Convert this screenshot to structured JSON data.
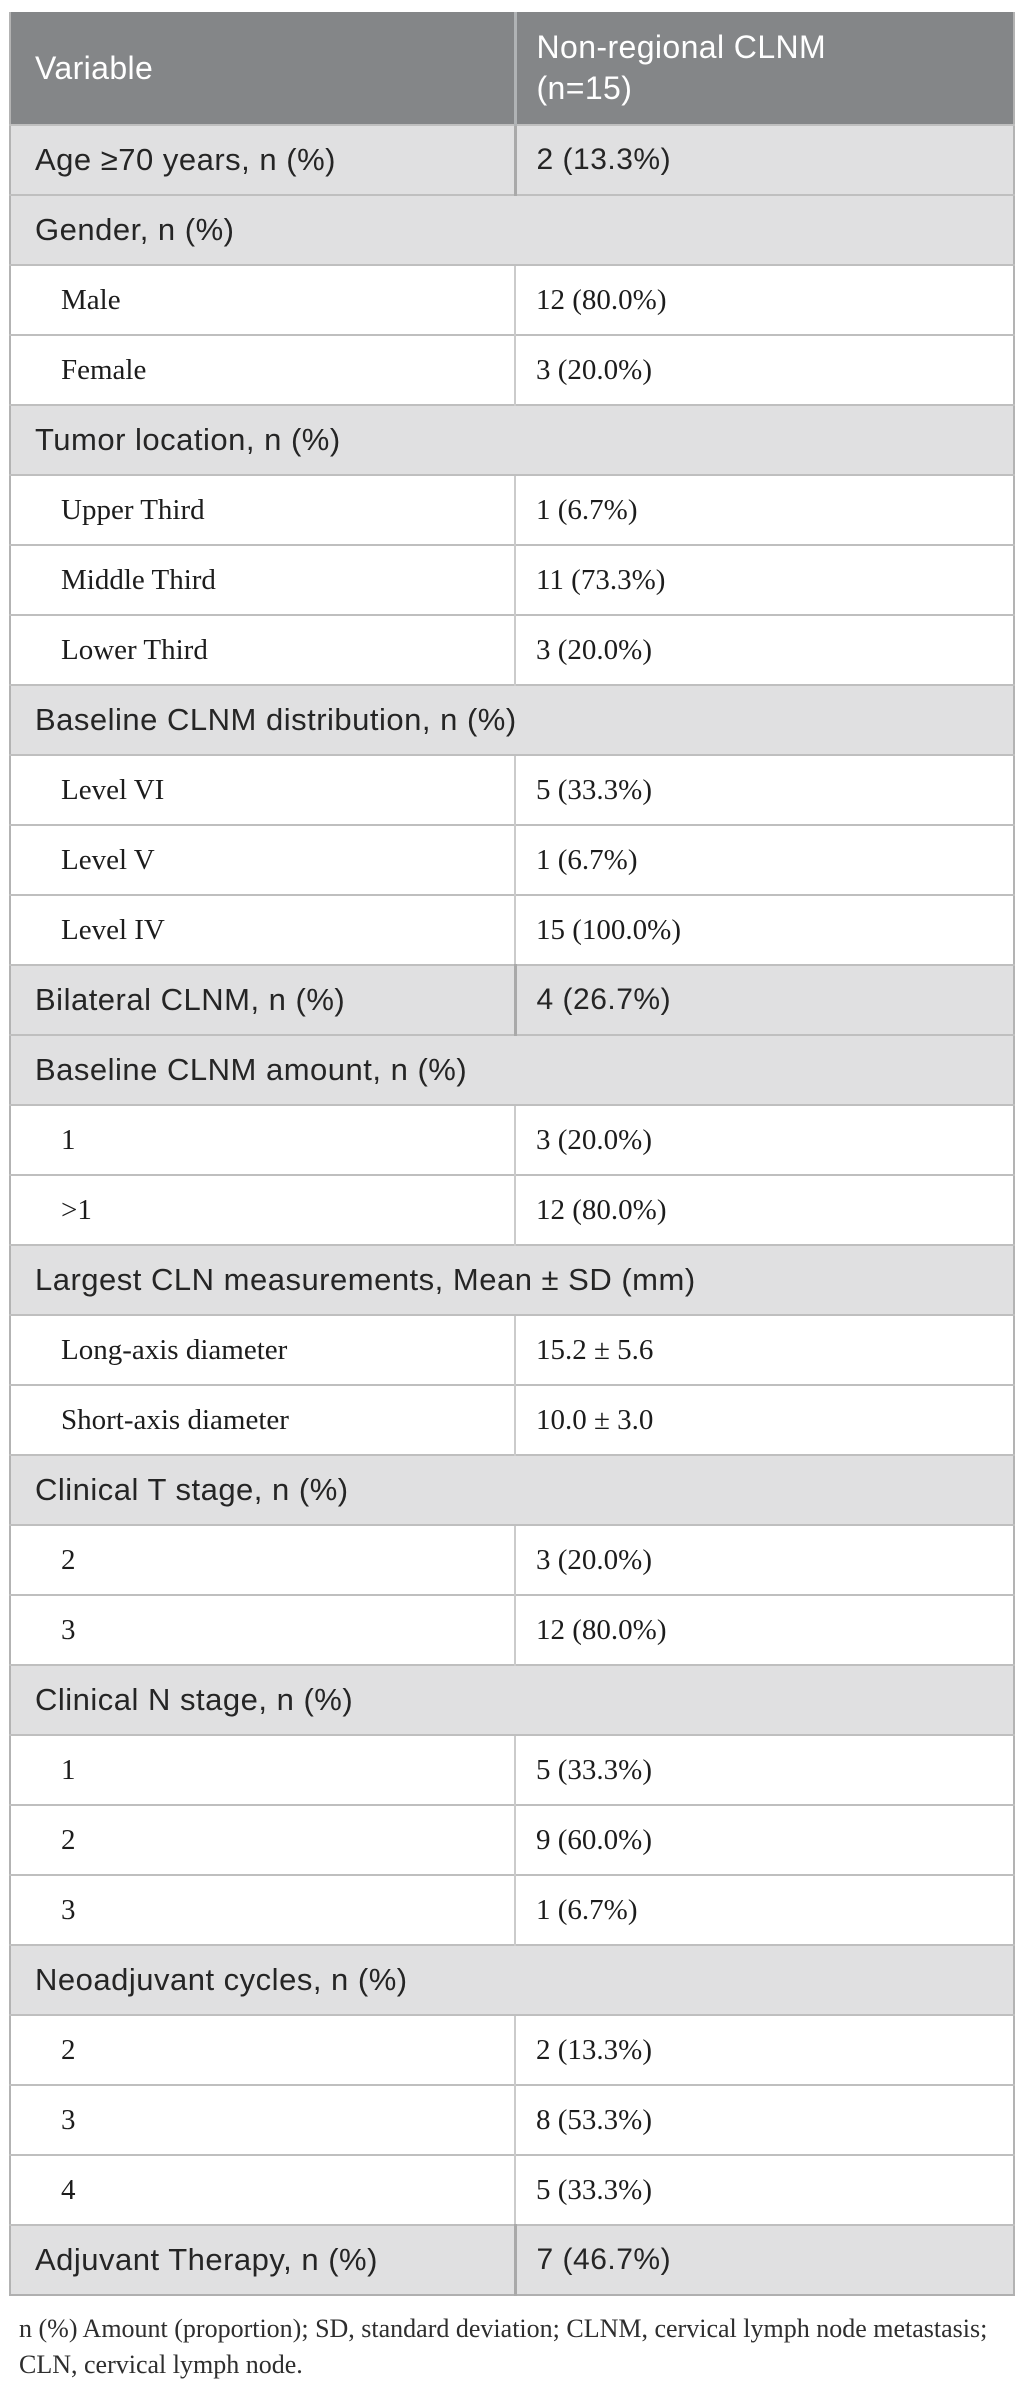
{
  "table": {
    "header": {
      "variable_label": "Variable",
      "group_label": "Non-regional CLNM\n(n=15)"
    },
    "rows": [
      {
        "type": "gray",
        "label": "Age ≥70 years, n (%)",
        "value": "2 (13.3%)"
      },
      {
        "type": "section",
        "label": "Gender, n (%)"
      },
      {
        "type": "white",
        "label": "Male",
        "value": "12 (80.0%)"
      },
      {
        "type": "white",
        "label": "Female",
        "value": "3 (20.0%)"
      },
      {
        "type": "section",
        "label": "Tumor location, n (%)"
      },
      {
        "type": "white",
        "label": "Upper Third",
        "value": "1 (6.7%)"
      },
      {
        "type": "white",
        "label": "Middle Third",
        "value": "11 (73.3%)"
      },
      {
        "type": "white",
        "label": "Lower Third",
        "value": "3 (20.0%)"
      },
      {
        "type": "section",
        "label": "Baseline CLNM distribution, n (%)"
      },
      {
        "type": "white",
        "label": "Level VI",
        "value": "5 (33.3%)"
      },
      {
        "type": "white",
        "label": "Level V",
        "value": "1 (6.7%)"
      },
      {
        "type": "white",
        "label": "Level IV",
        "value": "15 (100.0%)"
      },
      {
        "type": "gray",
        "label": "Bilateral CLNM, n (%)",
        "value": "4 (26.7%)"
      },
      {
        "type": "section",
        "label": "Baseline CLNM amount, n (%)"
      },
      {
        "type": "white",
        "label": "1",
        "value": "3 (20.0%)"
      },
      {
        "type": "white",
        "label": ">1",
        "value": "12 (80.0%)"
      },
      {
        "type": "section",
        "label": "Largest CLN measurements, Mean ± SD (mm)"
      },
      {
        "type": "white",
        "label": "Long-axis diameter",
        "value": "15.2 ± 5.6"
      },
      {
        "type": "white",
        "label": "Short-axis diameter",
        "value": "10.0 ± 3.0"
      },
      {
        "type": "section",
        "label": "Clinical T stage, n (%)"
      },
      {
        "type": "white",
        "label": "2",
        "value": "3 (20.0%)"
      },
      {
        "type": "white",
        "label": "3",
        "value": "12 (80.0%)"
      },
      {
        "type": "section",
        "label": "Clinical N stage, n (%)"
      },
      {
        "type": "white",
        "label": "1",
        "value": "5 (33.3%)"
      },
      {
        "type": "white",
        "label": "2",
        "value": "9 (60.0%)"
      },
      {
        "type": "white",
        "label": "3",
        "value": "1 (6.7%)"
      },
      {
        "type": "section",
        "label": "Neoadjuvant cycles, n (%)"
      },
      {
        "type": "white",
        "label": "2",
        "value": "2 (13.3%)"
      },
      {
        "type": "white",
        "label": "3",
        "value": "8 (53.3%)"
      },
      {
        "type": "white",
        "label": "4",
        "value": "5 (33.3%)"
      },
      {
        "type": "gray",
        "label": "Adjuvant Therapy, n (%)",
        "value": "7 (46.7%)"
      }
    ],
    "footnote": {
      "line1": "n (%) Amount (proportion); SD, standard deviation; CLNM, cervical lymph node metastasis;",
      "line2": "CLN, cervical lymph node."
    }
  },
  "colors": {
    "header_bg": "#848688",
    "header_text": "#ffffff",
    "section_bg": "#e0e0e1",
    "row_border": "#bfbfbf",
    "outer_border": "#b3b3b3",
    "gray_divider": "#a9a9a9",
    "white_divider": "#cbcbcb"
  }
}
